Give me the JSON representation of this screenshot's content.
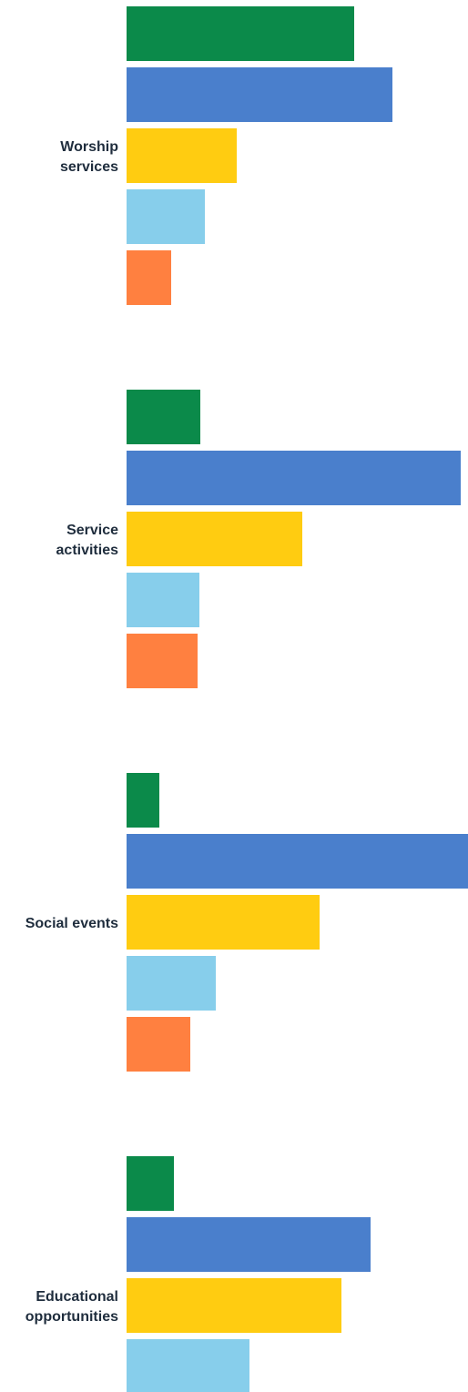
{
  "chart_data": {
    "type": "bar",
    "orientation": "horizontal",
    "title": "",
    "xlabel": "",
    "ylabel": "",
    "legend": "none",
    "grid": false,
    "categories": [
      "Worship\nservices",
      "Service\nactivities",
      "Social events",
      "Educational\nopportunities"
    ],
    "series": [
      {
        "color": "#0b8a4a",
        "values": [
          250,
          81,
          36,
          52
        ]
      },
      {
        "color": "#4a7fcc",
        "values": [
          292,
          367,
          377,
          268
        ]
      },
      {
        "color": "#ffcc11",
        "values": [
          121,
          193,
          212,
          236
        ]
      },
      {
        "color": "#87ceeb",
        "values": [
          86,
          80,
          98,
          135
        ]
      },
      {
        "color": "#ff8040",
        "values": [
          49,
          78,
          70,
          null
        ]
      }
    ]
  }
}
